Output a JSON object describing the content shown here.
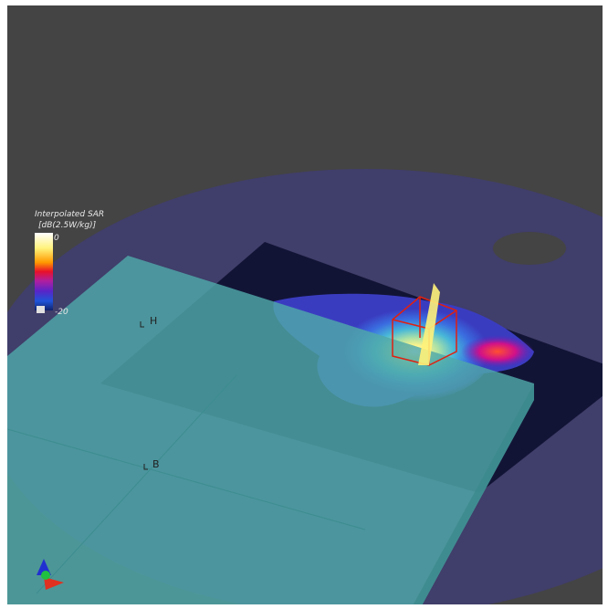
{
  "legend": {
    "title": "Interpolated SAR",
    "unit": "[dB(2.5W/kg)]",
    "max_label": "0",
    "min_label": "-20"
  },
  "markers": [
    {
      "label": "H"
    },
    {
      "label": "B"
    }
  ]
}
